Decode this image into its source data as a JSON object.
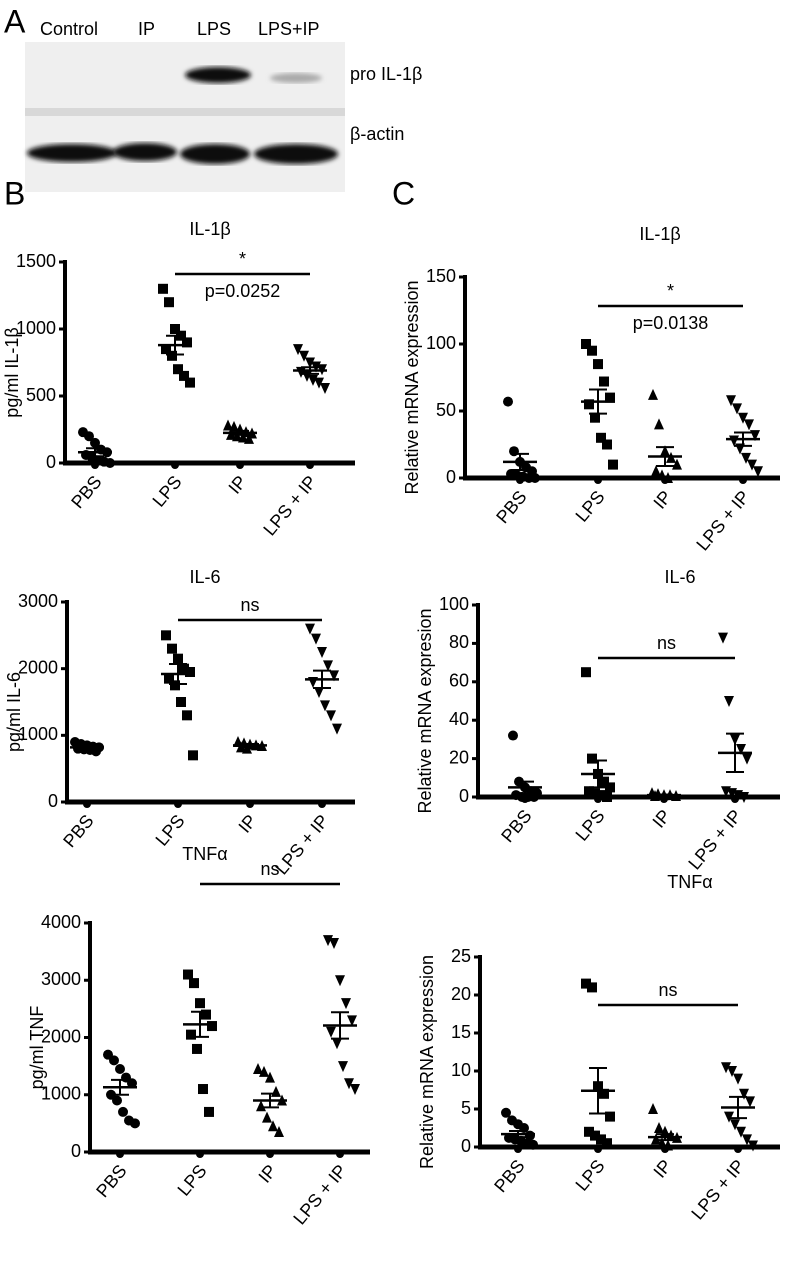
{
  "panels": {
    "a": "A",
    "b": "B",
    "c": "C"
  },
  "blot": {
    "lanes": [
      "Control",
      "IP",
      "LPS",
      "LPS+IP"
    ],
    "bands": [
      "pro IL-1β",
      "β-actin"
    ]
  },
  "chart_data": [
    {
      "type": "dot",
      "title": "IL-1β",
      "ylabel": "pg/ml IL-1β",
      "categories": [
        "PBS",
        "LPS",
        "IP",
        "LPS + IP"
      ],
      "markers": [
        "circle",
        "square",
        "triangle-up",
        "triangle-down"
      ],
      "color": "#000000",
      "points": [
        [
          230,
          200,
          150,
          100,
          80,
          60,
          40,
          20,
          10,
          0
        ],
        [
          1300,
          1200,
          1000,
          950,
          900,
          850,
          800,
          700,
          650,
          600
        ],
        [
          280,
          270,
          250,
          230,
          220,
          210,
          200,
          190,
          180
        ],
        [
          850,
          800,
          750,
          720,
          700,
          680,
          650,
          620,
          600,
          560
        ]
      ],
      "means": [
        80,
        880,
        225,
        690
      ],
      "sem": [
        30,
        70,
        15,
        25
      ],
      "ylim": [
        0,
        1500
      ],
      "yticks": [
        0,
        500,
        1000,
        1500
      ],
      "comparison": {
        "between": [
          "LPS",
          "LPS + IP"
        ],
        "mark": "*",
        "p": "p=0.0252"
      }
    },
    {
      "type": "dot",
      "title": "IL-6",
      "ylabel": "pg/ml IL-6",
      "categories": [
        "PBS",
        "LPS",
        "IP",
        "LPS + IP"
      ],
      "markers": [
        "circle",
        "square",
        "triangle-up",
        "triangle-down"
      ],
      "color": "#000000",
      "points": [
        [
          900,
          870,
          850,
          830,
          820,
          800,
          790,
          780,
          760
        ],
        [
          2500,
          2300,
          2150,
          2000,
          1950,
          1850,
          1750,
          1500,
          1300,
          700
        ],
        [
          900,
          880,
          860,
          850,
          840,
          820,
          800
        ],
        [
          2600,
          2450,
          2250,
          2050,
          1900,
          1800,
          1650,
          1450,
          1300,
          1100
        ]
      ],
      "means": [
        820,
        1920,
        850,
        1840
      ],
      "sem": [
        30,
        150,
        20,
        130
      ],
      "ylim": [
        0,
        3000
      ],
      "yticks": [
        0,
        1000,
        2000,
        3000
      ],
      "comparison": {
        "between": [
          "LPS",
          "LPS + IP"
        ],
        "mark": "ns"
      }
    },
    {
      "type": "dot",
      "title": "TNFα",
      "ylabel": "pg/ml TNF",
      "categories": [
        "PBS",
        "LPS",
        "IP",
        "LPS + IP"
      ],
      "markers": [
        "circle",
        "square",
        "triangle-up",
        "triangle-down"
      ],
      "color": "#000000",
      "points": [
        [
          1700,
          1600,
          1450,
          1300,
          1200,
          1000,
          900,
          700,
          550,
          500
        ],
        [
          3100,
          2950,
          2600,
          2400,
          2200,
          2050,
          1800,
          1100,
          700
        ],
        [
          1450,
          1400,
          1300,
          1050,
          900,
          800,
          600,
          450,
          350
        ],
        [
          3700,
          3650,
          3000,
          2600,
          2300,
          2100,
          1900,
          1500,
          1200,
          1100
        ]
      ],
      "means": [
        1130,
        2230,
        900,
        2210
      ],
      "sem": [
        130,
        220,
        120,
        230
      ],
      "ylim": [
        0,
        4000
      ],
      "yticks": [
        0,
        1000,
        2000,
        3000,
        4000
      ],
      "comparison": {
        "between": [
          "LPS",
          "LPS + IP"
        ],
        "mark": "ns"
      }
    },
    {
      "type": "dot",
      "title": "IL-1β",
      "ylabel": "Relative mRNA expression",
      "categories": [
        "PBS",
        "LPS",
        "IP",
        "LPS + IP"
      ],
      "markers": [
        "circle",
        "square",
        "triangle-up",
        "triangle-down"
      ],
      "color": "#000000",
      "points": [
        [
          57,
          20,
          12,
          8,
          5,
          3,
          2,
          1,
          0,
          0
        ],
        [
          100,
          95,
          85,
          72,
          60,
          55,
          45,
          30,
          25,
          10
        ],
        [
          62,
          40,
          20,
          15,
          10,
          5,
          2,
          0
        ],
        [
          58,
          52,
          45,
          40,
          32,
          28,
          22,
          15,
          10,
          5
        ]
      ],
      "means": [
        12,
        57,
        16,
        29
      ],
      "sem": [
        6,
        9,
        7,
        5
      ],
      "ylim": [
        0,
        150
      ],
      "yticks": [
        0,
        50,
        100,
        150
      ],
      "comparison": {
        "between": [
          "LPS",
          "LPS + IP"
        ],
        "mark": "*",
        "p": "p=0.0138"
      }
    },
    {
      "type": "dot",
      "title": "IL-6",
      "ylabel": "Relative mRNA expresion",
      "categories": [
        "PBS",
        "LPS",
        "IP",
        "LPS + IP"
      ],
      "markers": [
        "circle",
        "square",
        "triangle-up",
        "triangle-down"
      ],
      "color": "#000000",
      "points": [
        [
          32,
          8,
          5,
          3,
          2,
          1,
          0,
          0,
          0
        ],
        [
          65,
          20,
          12,
          8,
          5,
          3,
          2,
          1,
          0
        ],
        [
          2,
          1.5,
          1,
          1,
          0.5,
          0.5
        ],
        [
          83,
          50,
          30,
          25,
          20,
          3,
          2,
          1,
          0
        ]
      ],
      "means": [
        5,
        12,
        1,
        23
      ],
      "sem": [
        3,
        7,
        0.3,
        10
      ],
      "ylim": [
        0,
        100
      ],
      "yticks": [
        0,
        20,
        40,
        60,
        80,
        100
      ],
      "comparison": {
        "between": [
          "LPS",
          "LPS + IP"
        ],
        "mark": "ns"
      }
    },
    {
      "type": "dot",
      "title": "TNFα",
      "ylabel": "Relative mRNA expression",
      "categories": [
        "PBS",
        "LPS",
        "IP",
        "LPS + IP"
      ],
      "markers": [
        "circle",
        "square",
        "triangle-up",
        "triangle-down"
      ],
      "color": "#000000",
      "points": [
        [
          4.5,
          3.5,
          3,
          2.5,
          1.5,
          1.2,
          1,
          0.8,
          0.5,
          0.3
        ],
        [
          21.5,
          21,
          8,
          7,
          4,
          2,
          1.5,
          1,
          0.5
        ],
        [
          5,
          2.5,
          2,
          1.5,
          1.2,
          1,
          0.5,
          0.2
        ],
        [
          10.5,
          10,
          9,
          7,
          6,
          4,
          3,
          2,
          1,
          0.2
        ]
      ],
      "means": [
        1.7,
        7.4,
        1.3,
        5.2
      ],
      "sem": [
        0.4,
        3,
        0.4,
        1.4
      ],
      "ylim": [
        0,
        25
      ],
      "yticks": [
        0,
        5,
        10,
        15,
        20,
        25
      ],
      "comparison": {
        "between": [
          "LPS",
          "LPS + IP"
        ],
        "mark": "ns"
      }
    }
  ]
}
